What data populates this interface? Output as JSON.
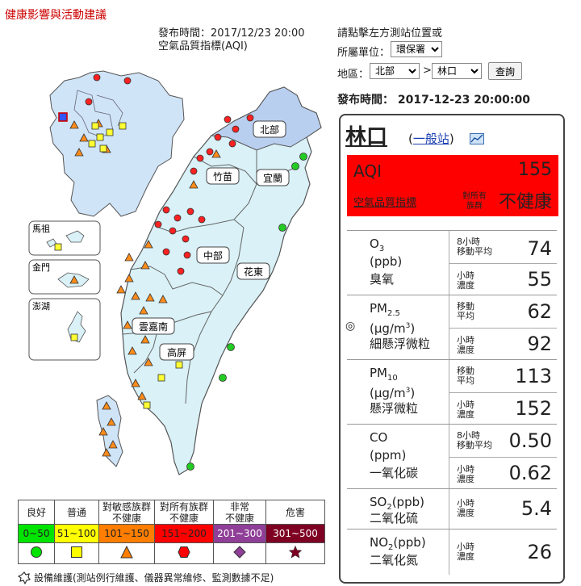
{
  "page_title": "健康影響與活動建議",
  "header": {
    "publish_time": "發布時間：2017/12/23 20:00",
    "aqi_label": "空氣品質指標(AQI)",
    "hint": "請點擊左方測站位置或",
    "unit_label": "所屬單位：",
    "unit_value": "環保署",
    "region_label": "地區：",
    "region_value": "北部",
    "arrow": ">",
    "station_value": "林口",
    "query_label": "查詢"
  },
  "panel_time": "發布時間： 2017-12-23 20:00:00",
  "map": {
    "regions": [
      "北部",
      "竹苗",
      "宜蘭",
      "中部",
      "花東",
      "雲嘉南",
      "高屏"
    ],
    "islands": [
      "馬祖",
      "金門",
      "澎湖"
    ]
  },
  "station": {
    "name": "林口",
    "type_label": "一般站",
    "aqi_label": "AQI",
    "aqi_value": "155",
    "aqi_full_label": "空氣品質指標",
    "status_prefix": "對所有族群",
    "status": "不健康",
    "status_color": "#ff0000"
  },
  "pollutants": [
    {
      "sym": "O",
      "sub": "3",
      "unit": "(ppb)",
      "cname": "臭氧",
      "l1": [
        "8小時",
        "移動平均"
      ],
      "v1": "74",
      "l2": [
        "小時",
        "濃度"
      ],
      "v2": "55"
    },
    {
      "sym": "PM",
      "sub": "2.5",
      "unit": "(μg/m",
      "unit_sup": "3",
      "unit_end": ")",
      "cname": "細懸浮微粒",
      "l1": [
        "移動",
        "平均"
      ],
      "v1": "62",
      "l2": [
        "小時",
        "濃度"
      ],
      "v2": "92",
      "marker": "◎"
    },
    {
      "sym": "PM",
      "sub": "10",
      "unit": "(μg/m",
      "unit_sup": "3",
      "unit_end": ")",
      "cname": "懸浮微粒",
      "l1": [
        "移動",
        "平均"
      ],
      "v1": "113",
      "l2": [
        "小時",
        "濃度"
      ],
      "v2": "152"
    },
    {
      "sym": "CO",
      "unit": "(ppm)",
      "cname": "一氧化碳",
      "l1": [
        "8小時",
        "移動平均"
      ],
      "v1": "0.50",
      "l2": [
        "小時",
        "濃度"
      ],
      "v2": "0.62"
    },
    {
      "sym": "SO",
      "sub": "2",
      "unit": "(ppb)",
      "cname": "二氧化硫",
      "l2": [
        "小時",
        "濃度"
      ],
      "v2": "5.4"
    },
    {
      "sym": "NO",
      "sub": "2",
      "unit": "(ppb)",
      "cname": "二氧化氮",
      "l2": [
        "小時",
        "濃度"
      ],
      "v2": "26"
    }
  ],
  "legend": [
    {
      "label": "良好",
      "range": "0~50",
      "color": "#00e400",
      "icon": "circle-icon"
    },
    {
      "label": "普通",
      "range": "51~100",
      "color": "#ffff00",
      "icon": "square-icon"
    },
    {
      "label": "對敏感族群不健康",
      "label_lines": [
        "對敏感族群",
        "不健康"
      ],
      "range": "101~150",
      "color": "#ff7e00",
      "icon": "triangle-icon"
    },
    {
      "label": "對所有族群不健康",
      "label_lines": [
        "對所有族群",
        "不健康"
      ],
      "range": "151~200",
      "color": "#ff0000",
      "icon": "hexagon-icon"
    },
    {
      "label": "非常不健康",
      "label_lines": [
        "非常",
        "不健康"
      ],
      "range": "201~300",
      "color": "#8f3f97",
      "icon": "diamond-icon"
    },
    {
      "label": "危害",
      "range": "301~500",
      "color": "#7e0023",
      "icon": "star-icon"
    }
  ],
  "footnote": "設備維護(測站例行維護、儀器異常維修、監測數據不足)"
}
